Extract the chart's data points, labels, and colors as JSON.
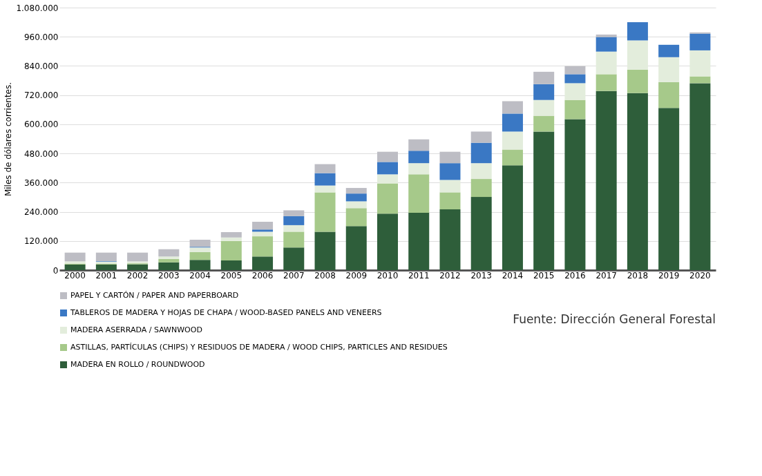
{
  "chart_data": {
    "type": "bar",
    "stacked": true,
    "ylabel": "Miles de dólares corrientes.",
    "categories": [
      "2000",
      "2001",
      "2002",
      "2003",
      "2004",
      "2005",
      "2006",
      "2007",
      "2008",
      "2009",
      "2010",
      "2011",
      "2012",
      "2013",
      "2014",
      "2015",
      "2016",
      "2017",
      "2018",
      "2019",
      "2020"
    ],
    "series": [
      {
        "name": "MADERA EN ROLLO / ROUNDWOOD",
        "color": "#2e5e3a",
        "values": [
          23000,
          23000,
          24000,
          32000,
          42000,
          40000,
          56000,
          93000,
          158000,
          181000,
          232000,
          236000,
          250000,
          301000,
          431000,
          570000,
          621000,
          737000,
          728000,
          667000,
          769000
        ]
      },
      {
        "name": "ASTILLAS, PARTÍCULAS (CHIPS) Y RESIDUOS DE MADERA / WOOD CHIPS, PARTICLES AND RESIDUES",
        "color": "#a6c98a",
        "values": [
          4000,
          4000,
          4000,
          14000,
          32000,
          80000,
          83000,
          65000,
          162000,
          74000,
          125000,
          158000,
          70000,
          74000,
          65000,
          65000,
          79000,
          69000,
          97000,
          107000,
          28000
        ]
      },
      {
        "name": "MADERA ASERRADA / SAWNWOOD",
        "color": "#e3eddc",
        "values": [
          9000,
          8000,
          8000,
          10000,
          19000,
          14000,
          19000,
          27000,
          28000,
          28000,
          37000,
          46000,
          51000,
          65000,
          74000,
          65000,
          69000,
          93000,
          120000,
          102000,
          107000
        ]
      },
      {
        "name": "TABLEROS DE MADERA Y HOJAS DE CHAPA / WOOD-BASED PANELS AND VENEERS",
        "color": "#3a78c4",
        "values": [
          null,
          2000,
          null,
          null,
          3000,
          null,
          9000,
          37000,
          51000,
          32000,
          51000,
          51000,
          69000,
          84000,
          74000,
          65000,
          37000,
          60000,
          75000,
          51000,
          69000
        ]
      },
      {
        "name": "PAPEL Y CARTÓN / PAPER AND PAPERBOARD",
        "color": "#bdbdc4",
        "values": [
          36000,
          35000,
          36000,
          30000,
          29000,
          22000,
          32000,
          24000,
          37000,
          23000,
          42000,
          47000,
          47000,
          46000,
          51000,
          51000,
          33000,
          10000,
          null,
          null,
          5000
        ]
      }
    ],
    "ylim": [
      0,
      1080000
    ],
    "yticks": [
      {
        "value": 0,
        "label": "0"
      },
      {
        "value": 120000,
        "label": "120.000"
      },
      {
        "value": 240000,
        "label": "240.000"
      },
      {
        "value": 360000,
        "label": "360.000"
      },
      {
        "value": 480000,
        "label": "480.000"
      },
      {
        "value": 600000,
        "label": "600.000"
      },
      {
        "value": 720000,
        "label": "720.000"
      },
      {
        "value": 840000,
        "label": "840.000"
      },
      {
        "value": 960000,
        "label": "960.000"
      },
      {
        "value": 1080000,
        "label": "1.080.000"
      }
    ],
    "grid": "y",
    "legend": "bottom",
    "annotations": [
      "Fuente: Dirección General Forestal"
    ]
  }
}
